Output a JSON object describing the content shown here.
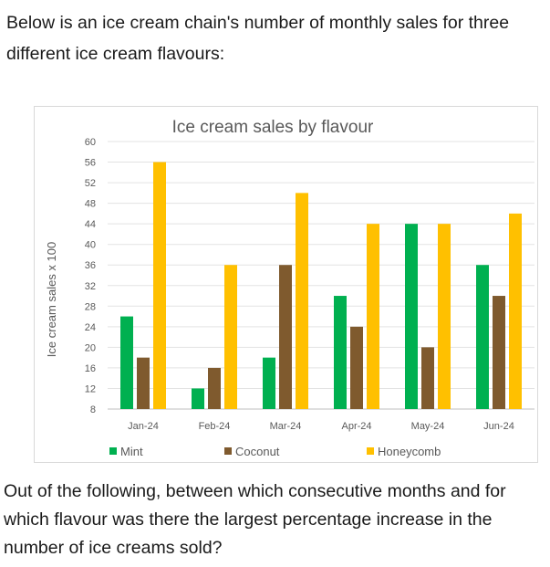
{
  "question": {
    "intro": "Below is an ice cream chain's number of monthly sales for three different ice cream flavours:",
    "prompt": "Out of the following, between which consecutive months and for which flavour was there the largest percentage increase in the number of ice creams sold?"
  },
  "chart_data": {
    "type": "bar",
    "title": "Ice cream sales by flavour",
    "xlabel": "",
    "ylabel": "Ice cream sales x 100",
    "ylim": [
      8,
      60
    ],
    "yticks": [
      8,
      12,
      16,
      20,
      24,
      28,
      32,
      36,
      40,
      44,
      48,
      52,
      56,
      60
    ],
    "grid": true,
    "legend": "bottom",
    "categories": [
      "Jan-24",
      "Feb-24",
      "Mar-24",
      "Apr-24",
      "May-24",
      "Jun-24"
    ],
    "series": [
      {
        "name": "Mint",
        "color": "#00b050",
        "values": [
          26,
          12,
          18,
          30,
          44,
          36
        ]
      },
      {
        "name": "Coconut",
        "color": "#7f5a2e",
        "values": [
          18,
          16,
          36,
          24,
          20,
          30
        ]
      },
      {
        "name": "Honeycomb",
        "color": "#ffc000",
        "values": [
          56,
          36,
          50,
          44,
          44,
          46
        ]
      }
    ]
  }
}
